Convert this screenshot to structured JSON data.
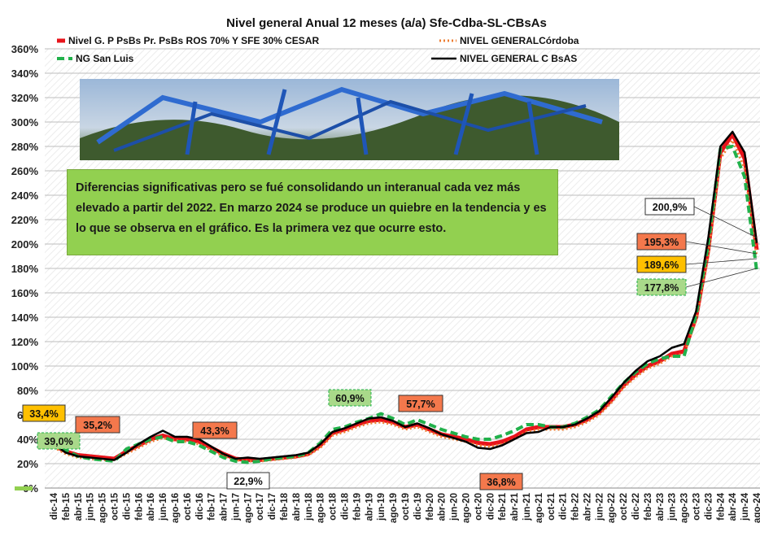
{
  "chart_data": {
    "type": "line",
    "title": "Nivel general  Anual 12 meses (a/a) Sfe-Cdba-SL-CBsAs",
    "note": "Diferencias significativas pero se fué consolidando un interanual cada vez más elevado a partir del 2022. En marzo 2024 se produce un quiebre en la tendencia y es lo que se observa en el gráfico.  Es la primera vez que ocurre esto.",
    "categories": [
      "dic-14",
      "feb-15",
      "abr-15",
      "jun-15",
      "ago-15",
      "oct-15",
      "dic-15",
      "feb-16",
      "abr-16",
      "jun-16",
      "ago-16",
      "oct-16",
      "dic-16",
      "feb-17",
      "abr-17",
      "jun-17",
      "ago-17",
      "oct-17",
      "dic-17",
      "feb-18",
      "abr-18",
      "jun-18",
      "ago-18",
      "oct-18",
      "dic-18",
      "feb-19",
      "abr-19",
      "jun-19",
      "ago-19",
      "oct-19",
      "dic-19",
      "feb-20",
      "abr-20",
      "jun-20",
      "ago-20",
      "oct-20",
      "dic-20",
      "feb-21",
      "abr-21",
      "jun-21",
      "ago-21",
      "oct-21",
      "dic-21",
      "feb-22",
      "abr-22",
      "jun-22",
      "ago-22",
      "oct-22",
      "dic-22",
      "feb-23",
      "abr-23",
      "jun-23",
      "ago-23",
      "oct-23",
      "dic-23",
      "feb-24",
      "abr-24",
      "jun-24",
      "ago-24"
    ],
    "series": [
      {
        "name": "Nivel G. P PsBs Pr. PsBs ROS 70% Y SFE 30% CESAR",
        "color": "#e8141b",
        "style": "solid",
        "width": 5,
        "values": [
          35,
          30,
          27,
          26,
          25,
          24,
          30,
          35,
          40,
          43,
          40,
          40,
          38,
          33,
          28,
          24,
          23,
          23,
          24,
          25,
          26,
          28,
          35,
          45,
          48,
          52,
          55,
          56,
          54,
          50,
          52,
          48,
          44,
          42,
          40,
          37,
          36,
          38,
          42,
          48,
          50,
          50,
          50,
          52,
          56,
          62,
          72,
          84,
          93,
          100,
          104,
          110,
          112,
          140,
          195,
          275,
          290,
          270,
          195.3
        ]
      },
      {
        "name": "NIVEL GENERALCórdoba",
        "color": "#ed7d31",
        "style": "dotted",
        "width": 3,
        "values": [
          33.4,
          28,
          25,
          24,
          23,
          23,
          28,
          33,
          38,
          41,
          39,
          38,
          36,
          31,
          26,
          23,
          22,
          22,
          23,
          24,
          25,
          27,
          33,
          43,
          46,
          50,
          53,
          54,
          52,
          48,
          50,
          46,
          42,
          40,
          38,
          35,
          34,
          36,
          40,
          46,
          48,
          48,
          48,
          50,
          54,
          60,
          70,
          82,
          91,
          98,
          102,
          108,
          110,
          138,
          190,
          270,
          285,
          262,
          189.6
        ]
      },
      {
        "name": "NG San Luis",
        "color": "#21b14b",
        "style": "dashed",
        "width": 4,
        "values": [
          39,
          31,
          26,
          24,
          23,
          22,
          32,
          36,
          40,
          42,
          38,
          38,
          35,
          30,
          25,
          22,
          21,
          22,
          24,
          25,
          26,
          29,
          37,
          48,
          50,
          54,
          57,
          60.9,
          57,
          52,
          56,
          52,
          48,
          45,
          42,
          40,
          40,
          43,
          47,
          52,
          52,
          50,
          50,
          53,
          58,
          64,
          75,
          86,
          95,
          102,
          106,
          108,
          108,
          142,
          200,
          278,
          280,
          255,
          177.8
        ]
      },
      {
        "name": "NIVEL GENERAL C BsAS",
        "color": "#000000",
        "style": "solid",
        "width": 2.5,
        "values": [
          36,
          29,
          26,
          25,
          24,
          23,
          29,
          36,
          42,
          47,
          42,
          42,
          40,
          34,
          28,
          24,
          25,
          24,
          25,
          26,
          27,
          29,
          36,
          46,
          49,
          53,
          57,
          58,
          55,
          50,
          53,
          49,
          44,
          41,
          38,
          33,
          32,
          35,
          40,
          45,
          46,
          50,
          50,
          52,
          57,
          63,
          74,
          86,
          96,
          104,
          108,
          115,
          118,
          145,
          205,
          280,
          292,
          275,
          200.9
        ]
      }
    ],
    "annotations": [
      {
        "text": "33,4%",
        "color": "#ffc000"
      },
      {
        "text": "39,0%",
        "color": "#a9d98a"
      },
      {
        "text": "35,2%",
        "color": "#f4784c"
      },
      {
        "text": "43,3%",
        "color": "#f4784c"
      },
      {
        "text": "22,9%",
        "color": "#ffffff"
      },
      {
        "text": "60,9%",
        "color": "#a9d98a"
      },
      {
        "text": "57,7%",
        "color": "#f4784c"
      },
      {
        "text": "36,8%",
        "color": "#f4784c"
      },
      {
        "text": "200,9%",
        "color": "#ffffff"
      },
      {
        "text": "195,3%",
        "color": "#f4784c"
      },
      {
        "text": "189,6%",
        "color": "#ffc000"
      },
      {
        "text": "177,8%",
        "color": "#a9d98a"
      }
    ],
    "ylim": [
      0,
      360
    ],
    "yticks": [
      {
        "value": 0,
        "label": "0%"
      },
      {
        "value": 20,
        "label": "20%"
      },
      {
        "value": 40,
        "label": "40%"
      },
      {
        "value": 60,
        "label": "60%"
      },
      {
        "value": 80,
        "label": "80%"
      },
      {
        "value": 100,
        "label": "100%"
      },
      {
        "value": 120,
        "label": "120%"
      },
      {
        "value": 140,
        "label": "140%"
      },
      {
        "value": 160,
        "label": "160%"
      },
      {
        "value": 180,
        "label": "180%"
      },
      {
        "value": 200,
        "label": "200%"
      },
      {
        "value": 220,
        "label": "220%"
      },
      {
        "value": 240,
        "label": "240%"
      },
      {
        "value": 260,
        "label": "260%"
      },
      {
        "value": 280,
        "label": "280%"
      },
      {
        "value": 300,
        "label": "300%"
      },
      {
        "value": 320,
        "label": "320%"
      },
      {
        "value": 340,
        "label": "340%"
      },
      {
        "value": 360,
        "label": "360%"
      }
    ],
    "grid": true
  }
}
